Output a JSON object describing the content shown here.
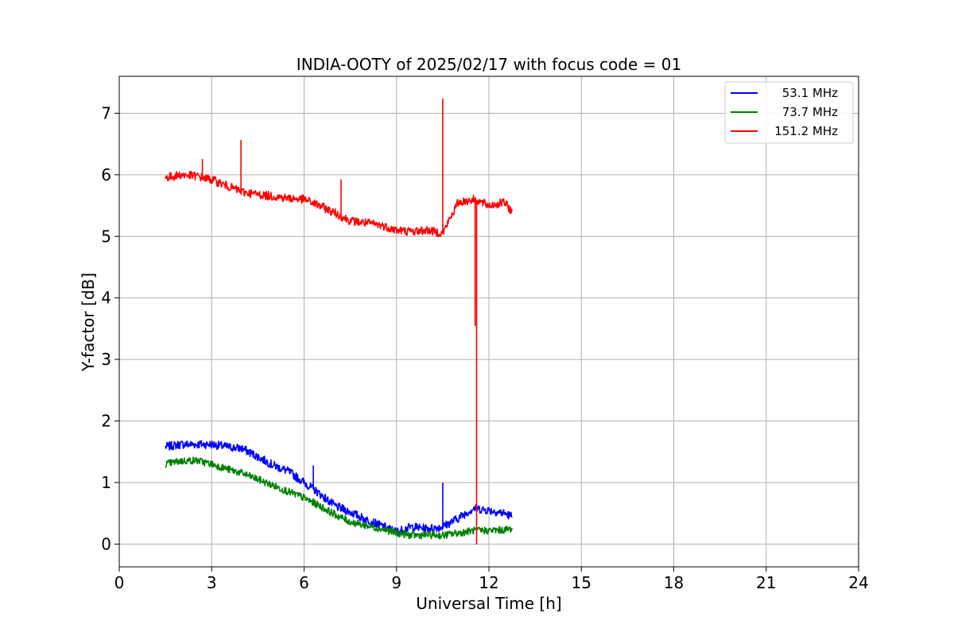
{
  "chart_data": {
    "type": "line",
    "title": "INDIA-OOTY of 2025/02/17 with focus code = 01",
    "xlabel": "Universal Time [h]",
    "ylabel": "Y-factor [dB]",
    "xlim": [
      0,
      24
    ],
    "ylim": [
      -0.37,
      7.6
    ],
    "xticks": [
      "0",
      "3",
      "6",
      "9",
      "12",
      "15",
      "18",
      "21",
      "24"
    ],
    "yticks": [
      "0",
      "1",
      "2",
      "3",
      "4",
      "5",
      "6",
      "7"
    ],
    "grid": true,
    "legend_position": "top-right",
    "series": [
      {
        "name": "53.1 MHz",
        "color": "#0000ff",
        "noise": 0.07,
        "x": [
          1.5,
          2.0,
          3.0,
          3.5,
          4.0,
          4.5,
          5.0,
          5.5,
          6.0,
          6.5,
          7.0,
          7.5,
          8.0,
          8.5,
          9.0,
          9.5,
          10.0,
          10.5,
          11.0,
          11.5,
          12.0,
          12.5,
          12.75
        ],
        "y": [
          1.58,
          1.62,
          1.62,
          1.58,
          1.55,
          1.42,
          1.28,
          1.18,
          1.0,
          0.82,
          0.62,
          0.52,
          0.4,
          0.3,
          0.2,
          0.28,
          0.25,
          0.28,
          0.42,
          0.58,
          0.55,
          0.5,
          0.45
        ],
        "spikes": [
          [
            6.3,
            1.27
          ],
          [
            10.5,
            0.99
          ]
        ]
      },
      {
        "name": "73.7 MHz",
        "color": "#008000",
        "noise": 0.06,
        "x": [
          1.5,
          2.0,
          2.5,
          3.0,
          3.5,
          4.0,
          4.5,
          5.0,
          5.5,
          6.0,
          6.5,
          7.0,
          7.5,
          8.0,
          8.5,
          9.0,
          9.5,
          10.0,
          10.5,
          11.0,
          11.5,
          12.0,
          12.5,
          12.75
        ],
        "y": [
          1.3,
          1.35,
          1.36,
          1.3,
          1.22,
          1.15,
          1.05,
          0.95,
          0.85,
          0.75,
          0.62,
          0.48,
          0.36,
          0.3,
          0.25,
          0.18,
          0.14,
          0.15,
          0.14,
          0.18,
          0.22,
          0.22,
          0.23,
          0.25
        ]
      },
      {
        "name": "151.2 MHz",
        "color": "#ff0000",
        "noise": 0.07,
        "x": [
          1.5,
          2.0,
          2.5,
          3.0,
          3.5,
          4.0,
          4.5,
          5.0,
          5.5,
          6.0,
          6.5,
          7.0,
          7.5,
          8.0,
          8.5,
          9.0,
          9.5,
          10.0,
          10.5,
          11.0,
          11.5,
          12.0,
          12.5,
          12.75
        ],
        "y": [
          5.95,
          6.0,
          5.98,
          5.92,
          5.82,
          5.72,
          5.68,
          5.65,
          5.62,
          5.6,
          5.5,
          5.38,
          5.25,
          5.22,
          5.18,
          5.1,
          5.08,
          5.1,
          5.05,
          5.55,
          5.6,
          5.5,
          5.55,
          5.4
        ],
        "spikes": [
          [
            2.7,
            6.25
          ],
          [
            3.95,
            6.56
          ],
          [
            7.2,
            5.92
          ],
          [
            10.5,
            7.23
          ]
        ],
        "dips": [
          [
            11.55,
            3.55
          ],
          [
            11.6,
            0.0
          ]
        ]
      }
    ]
  }
}
